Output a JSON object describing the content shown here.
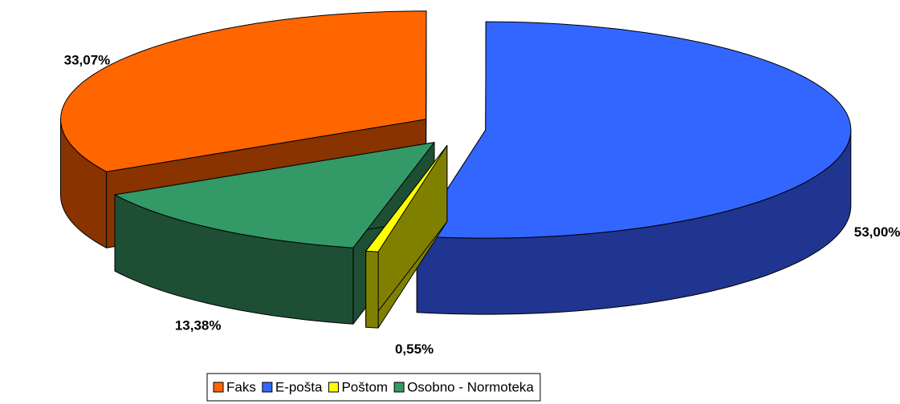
{
  "chart_data": {
    "type": "pie3d",
    "categories": [
      "Faks",
      "E-pošta",
      "Poštom",
      "Osobno - Normoteka"
    ],
    "values": [
      33.07,
      53.0,
      0.55,
      13.38
    ],
    "value_labels": [
      "33,07%",
      "53,00%",
      "0,55%",
      "13,38%"
    ],
    "colors": [
      "#ff6600",
      "#3366ff",
      "#ffff00",
      "#339966"
    ],
    "side_colors": [
      "#883300",
      "#1f3590",
      "#808000",
      "#1e4f35"
    ],
    "legend": "bottom"
  }
}
